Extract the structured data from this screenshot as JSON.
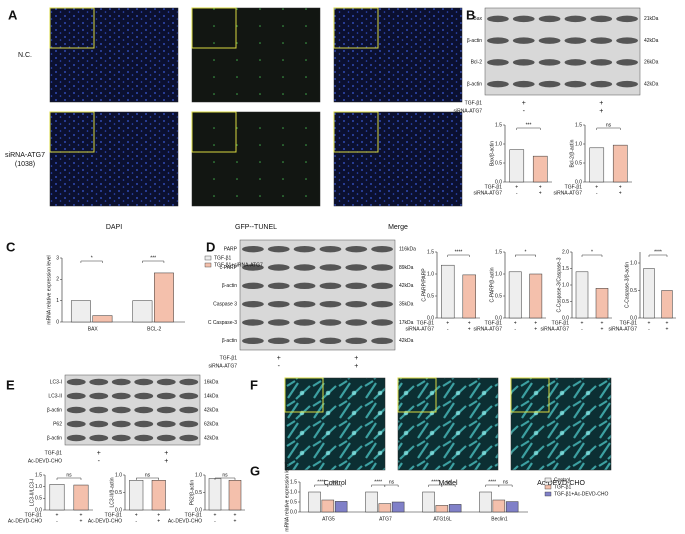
{
  "panel_labels": [
    "A",
    "B",
    "C",
    "D",
    "E",
    "F",
    "G"
  ],
  "panel_a": {
    "row_labels": [
      "N.C.",
      "siRNA-ATG7",
      "(1038)"
    ],
    "column_labels": [
      "DAPI",
      "GFP--TUNEL",
      "Merge"
    ]
  },
  "blots": [
    {
      "bands": [
        "Bax",
        "β-actin",
        "Bcl-2",
        "β-actin"
      ],
      "sizes": [
        "21kDa",
        "42kDa",
        "26kDa",
        "42kDa"
      ],
      "treatments": [
        {
          "name": "TGF-β1",
          "signs": [
            "+",
            "+"
          ]
        },
        {
          "name": "siRNA-ATG7",
          "signs": [
            "-",
            "+"
          ]
        }
      ]
    },
    {
      "bands": [
        "PARP",
        "c-PARP",
        "β-actin",
        "Caspase 3",
        "C Caspase-3",
        "β-actin"
      ],
      "sizes": [
        "116kDa",
        "89kDa",
        "42kDa",
        "35kDa",
        "17kDa",
        "42kDa"
      ],
      "treatments": [
        {
          "name": "TGF-β1",
          "signs": [
            "+",
            "+"
          ]
        },
        {
          "name": "siRNA-ATG7",
          "signs": [
            "-",
            "+"
          ]
        }
      ]
    },
    {
      "bands": [
        "LC3-I",
        "LC3-II",
        "β-actin",
        "P62",
        "β-actin"
      ],
      "sizes": [
        "16kDa",
        "14kDa",
        "42kDa",
        "62kDa",
        "42kDa"
      ],
      "treatments": [
        {
          "name": "TGF-β1",
          "signs": [
            "+",
            "+"
          ]
        },
        {
          "name": "Ac-DEVD-CHO",
          "signs": [
            "-",
            "+"
          ]
        }
      ]
    }
  ],
  "panel_f": {
    "captions": [
      "Control",
      "Model",
      "Ac-DEVD-CHO"
    ]
  },
  "chart_data": [
    {
      "type": "bar",
      "y_label": "Bax/β-actin",
      "values": [
        0.85,
        0.68
      ],
      "colors": [
        "#eeeeee",
        "#f4c0ac"
      ],
      "ylim": [
        0,
        1.5
      ],
      "yticks": [
        {
          "value": 0,
          "label": "0.0"
        },
        {
          "value": 0.5,
          "label": "0.5"
        },
        {
          "value": 1,
          "label": "1.0"
        },
        {
          "value": 1.5,
          "label": "1.5"
        }
      ],
      "significance": [
        "***"
      ],
      "treatments": [
        {
          "name": "TGF-β1",
          "signs": [
            "+",
            "+"
          ]
        },
        {
          "name": "siRNA-ATG7",
          "signs": [
            "-",
            "+"
          ]
        }
      ]
    },
    {
      "type": "bar",
      "y_label": "Bcl-2/β-actin",
      "values": [
        0.9,
        0.97
      ],
      "colors": [
        "#eeeeee",
        "#f4c0ac"
      ],
      "ylim": [
        0,
        1.5
      ],
      "yticks": [
        {
          "value": 0,
          "label": "0.0"
        },
        {
          "value": 0.5,
          "label": "0.5"
        },
        {
          "value": 1,
          "label": "1.0"
        },
        {
          "value": 1.5,
          "label": "1.5"
        }
      ],
      "significance": [
        "ns"
      ],
      "treatments": [
        {
          "name": "TGF-β1",
          "signs": [
            "+",
            "+"
          ]
        },
        {
          "name": "siRNA-ATG7",
          "signs": [
            "-",
            "+"
          ]
        }
      ]
    },
    {
      "type": "grouped_bar",
      "y_label": "mRNA relative expression level",
      "categories": [
        "BAX",
        "BCL-2"
      ],
      "series": [
        {
          "name": "TGF-β1",
          "color": "#eeeeee",
          "values": [
            1,
            1
          ]
        },
        {
          "name": "TGF-β1+siRNA-ATG7",
          "color": "#f4c0ac",
          "values": [
            0.3,
            2.3
          ]
        }
      ],
      "ylim": [
        0,
        3
      ],
      "yticks": [
        0,
        1,
        2,
        3
      ],
      "significance": [
        [
          "*"
        ],
        [
          "***"
        ]
      ]
    },
    {
      "type": "bar",
      "y_label": "C-PARP/PARP",
      "values": [
        1.2,
        0.98
      ],
      "colors": [
        "#eeeeee",
        "#f4c0ac"
      ],
      "ylim": [
        0,
        1.5
      ],
      "yticks": [
        {
          "value": 0,
          "label": "0.0"
        },
        {
          "value": 0.5,
          "label": "0.5"
        },
        {
          "value": 1,
          "label": "1.0"
        },
        {
          "value": 1.5,
          "label": "1.5"
        }
      ],
      "significance": [
        "****"
      ],
      "treatments": [
        {
          "name": "TGF-β1",
          "signs": [
            "+",
            "+"
          ]
        },
        {
          "name": "siRNA-ATG7",
          "signs": [
            "-",
            "+"
          ]
        }
      ]
    },
    {
      "type": "bar",
      "y_label": "C-PARP/β-actin",
      "values": [
        1.05,
        1.0
      ],
      "colors": [
        "#eeeeee",
        "#f4c0ac"
      ],
      "ylim": [
        0,
        1.5
      ],
      "yticks": [
        {
          "value": 0,
          "label": "0.0"
        },
        {
          "value": 0.5,
          "label": "0.5"
        },
        {
          "value": 1,
          "label": "1.0"
        },
        {
          "value": 1.5,
          "label": "1.5"
        }
      ],
      "significance": [
        "*"
      ],
      "treatments": [
        {
          "name": "TGF-β1",
          "signs": [
            "+",
            "+"
          ]
        },
        {
          "name": "siRNA-ATG7",
          "signs": [
            "-",
            "+"
          ]
        }
      ]
    },
    {
      "type": "bar",
      "y_label": "C-Caspase-3/Caspase-3",
      "values": [
        1.4,
        0.9
      ],
      "colors": [
        "#eeeeee",
        "#f4c0ac"
      ],
      "ylim": [
        0,
        2
      ],
      "yticks": [
        {
          "value": 0,
          "label": "0.0"
        },
        {
          "value": 0.5,
          "label": "0.5"
        },
        {
          "value": 1,
          "label": "1.0"
        },
        {
          "value": 1.5,
          "label": "1.5"
        },
        {
          "value": 2,
          "label": "2.0"
        }
      ],
      "significance": [
        "*"
      ],
      "treatments": [
        {
          "name": "TGF-β1",
          "signs": [
            "+",
            "+"
          ]
        },
        {
          "name": "siRNA-ATG7",
          "signs": [
            "-",
            "+"
          ]
        }
      ]
    },
    {
      "type": "bar",
      "y_label": "C-Caspase-3/β-actin",
      "values": [
        0.9,
        0.5
      ],
      "colors": [
        "#eeeeee",
        "#f4c0ac"
      ],
      "ylim": [
        0,
        1.2
      ],
      "yticks": [
        {
          "value": 0,
          "label": "0.0"
        },
        {
          "value": 0.5,
          "label": "0.5"
        },
        {
          "value": 1,
          "label": "1.0"
        }
      ],
      "significance": [
        "****"
      ],
      "treatments": [
        {
          "name": "TGF-β1",
          "signs": [
            "+",
            "+"
          ]
        },
        {
          "name": "siRNA-ATG7",
          "signs": [
            "-",
            "+"
          ]
        }
      ]
    },
    {
      "type": "bar",
      "y_label": "LC3-II/LC3-I",
      "values": [
        1.1,
        1.07
      ],
      "colors": [
        "#eeeeee",
        "#f4c0ac"
      ],
      "ylim": [
        0,
        1.5
      ],
      "yticks": [
        {
          "value": 0,
          "label": "0.0"
        },
        {
          "value": 0.5,
          "label": "0.5"
        },
        {
          "value": 1,
          "label": "1.0"
        },
        {
          "value": 1.5,
          "label": "1.5"
        }
      ],
      "significance": [
        "ns"
      ],
      "treatments": [
        {
          "name": "TGF-β1",
          "signs": [
            "+",
            "+"
          ]
        },
        {
          "name": "Ac-DEVD-CHO",
          "signs": [
            "-",
            "+"
          ]
        }
      ]
    },
    {
      "type": "bar",
      "y_label": "LC3-II/β-actin",
      "values": [
        0.85,
        0.85
      ],
      "colors": [
        "#eeeeee",
        "#f4c0ac"
      ],
      "ylim": [
        0,
        1.0
      ],
      "yticks": [
        {
          "value": 0,
          "label": "0.0"
        },
        {
          "value": 0.5,
          "label": "0.5"
        },
        {
          "value": 1,
          "label": "1.0"
        }
      ],
      "significance": [
        "ns"
      ],
      "treatments": [
        {
          "name": "TGF-β1",
          "signs": [
            "+",
            "+"
          ]
        },
        {
          "name": "Ac-DEVD-CHO",
          "signs": [
            "-",
            "+"
          ]
        }
      ]
    },
    {
      "type": "bar",
      "y_label": "P62/β-actin",
      "values": [
        0.9,
        0.85
      ],
      "colors": [
        "#eeeeee",
        "#f4c0ac"
      ],
      "ylim": [
        0,
        1.0
      ],
      "yticks": [
        {
          "value": 0,
          "label": "0.0"
        },
        {
          "value": 0.5,
          "label": "0.5"
        },
        {
          "value": 1,
          "label": "1.0"
        }
      ],
      "significance": [
        "ns"
      ],
      "treatments": [
        {
          "name": "TGF-β1",
          "signs": [
            "+",
            "+"
          ]
        },
        {
          "name": "Ac-DEVD-CHO",
          "signs": [
            "-",
            "+"
          ]
        }
      ]
    },
    {
      "type": "grouped_bar",
      "y_label": "mRNA relative expression level",
      "categories": [
        "ATG5",
        "ATG7",
        "ATG16L",
        "Beclin1"
      ],
      "series": [
        {
          "name": "Control",
          "color": "#eeeeee",
          "values": [
            1,
            1,
            1,
            1
          ]
        },
        {
          "name": "TGF-β1",
          "color": "#f4c0ac",
          "values": [
            0.6,
            0.42,
            0.33,
            0.6
          ]
        },
        {
          "name": "TGF-β1+Ac-DEVD-CHO",
          "color": "#8080c8",
          "values": [
            0.53,
            0.5,
            0.38,
            0.52
          ]
        }
      ],
      "ylim": [
        0,
        1.5
      ],
      "yticks": [
        {
          "value": 0,
          "label": "0.0"
        },
        {
          "value": 0.5,
          "label": "0.5"
        },
        {
          "value": 1,
          "label": "1.0"
        },
        {
          "value": 1.5,
          "label": "1.5"
        }
      ],
      "significance": [
        [
          "****",
          "ns"
        ],
        [
          "****",
          "ns"
        ],
        [
          "****",
          "ns"
        ],
        [
          "****",
          "ns"
        ]
      ]
    }
  ]
}
